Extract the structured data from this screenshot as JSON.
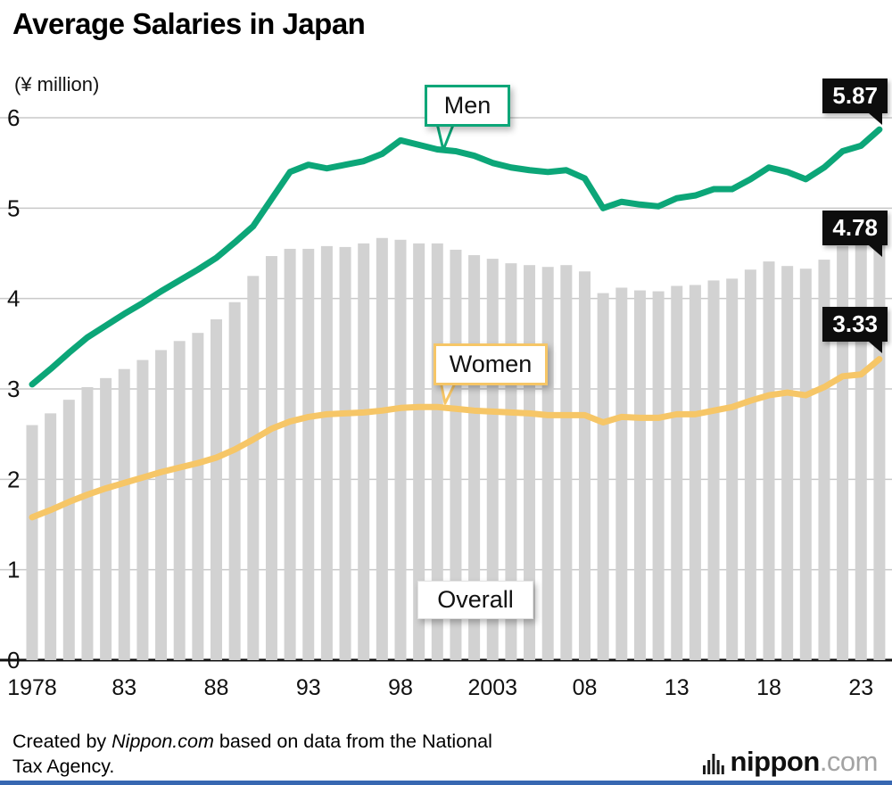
{
  "header": {
    "title": "Average Salaries in Japan",
    "unit_label": "(¥ million)"
  },
  "chart_data": {
    "type": "combo",
    "title": "Average Salaries in Japan",
    "ylabel": "(¥ million)",
    "grid": "horizontal",
    "ylim": [
      0,
      6
    ],
    "yticks": [
      0,
      1,
      2,
      3,
      4,
      5,
      6
    ],
    "x_start_year": 1978,
    "x_end_year": 2024,
    "x_ticks": [
      1978,
      1983,
      1988,
      1993,
      1998,
      2003,
      2008,
      2013,
      2018,
      2023
    ],
    "x_tick_labels": [
      "1978",
      "83",
      "88",
      "93",
      "98",
      "2003",
      "08",
      "13",
      "18",
      "23"
    ],
    "series": [
      {
        "name": "Overall",
        "type": "bar",
        "color": "#d2d2d2",
        "values": [
          2.6,
          2.73,
          2.88,
          3.02,
          3.12,
          3.22,
          3.32,
          3.43,
          3.53,
          3.62,
          3.77,
          3.96,
          4.25,
          4.47,
          4.55,
          4.55,
          4.58,
          4.57,
          4.61,
          4.67,
          4.65,
          4.61,
          4.61,
          4.54,
          4.48,
          4.44,
          4.39,
          4.37,
          4.35,
          4.37,
          4.3,
          4.06,
          4.12,
          4.09,
          4.08,
          4.14,
          4.15,
          4.2,
          4.22,
          4.32,
          4.41,
          4.36,
          4.33,
          4.43,
          4.58,
          4.6,
          4.78
        ]
      },
      {
        "name": "Men",
        "type": "line",
        "color": "#0CA678",
        "values": [
          3.05,
          3.22,
          3.4,
          3.57,
          3.7,
          3.83,
          3.95,
          4.08,
          4.2,
          4.32,
          4.45,
          4.62,
          4.8,
          5.1,
          5.4,
          5.48,
          5.44,
          5.48,
          5.52,
          5.6,
          5.75,
          5.7,
          5.65,
          5.63,
          5.58,
          5.5,
          5.45,
          5.42,
          5.4,
          5.42,
          5.33,
          5.0,
          5.07,
          5.04,
          5.02,
          5.11,
          5.14,
          5.21,
          5.21,
          5.32,
          5.45,
          5.4,
          5.32,
          5.45,
          5.63,
          5.69,
          5.87
        ]
      },
      {
        "name": "Women",
        "type": "line",
        "color": "#F6C667",
        "values": [
          1.58,
          1.66,
          1.75,
          1.83,
          1.9,
          1.96,
          2.02,
          2.08,
          2.13,
          2.18,
          2.24,
          2.33,
          2.44,
          2.56,
          2.64,
          2.69,
          2.72,
          2.73,
          2.74,
          2.76,
          2.79,
          2.8,
          2.8,
          2.78,
          2.76,
          2.75,
          2.74,
          2.73,
          2.71,
          2.71,
          2.71,
          2.63,
          2.69,
          2.68,
          2.68,
          2.72,
          2.72,
          2.76,
          2.8,
          2.87,
          2.93,
          2.96,
          2.93,
          3.02,
          3.14,
          3.16,
          3.33
        ]
      }
    ],
    "end_labels": {
      "men": "5.87",
      "overall": "4.78",
      "women": "3.33"
    }
  },
  "annotations": {
    "men": "Men",
    "women": "Women",
    "overall": "Overall"
  },
  "footer": {
    "credit_prefix": "Created by ",
    "credit_source": "Nippon.com",
    "credit_rest": " based on data from the National Tax Agency.",
    "logo_name": "nippon",
    "logo_tld": ".com"
  },
  "colors": {
    "men": "#0CA678",
    "women": "#F6C667",
    "bars": "#d2d2d2",
    "accent_bottom": "#3767b1"
  }
}
